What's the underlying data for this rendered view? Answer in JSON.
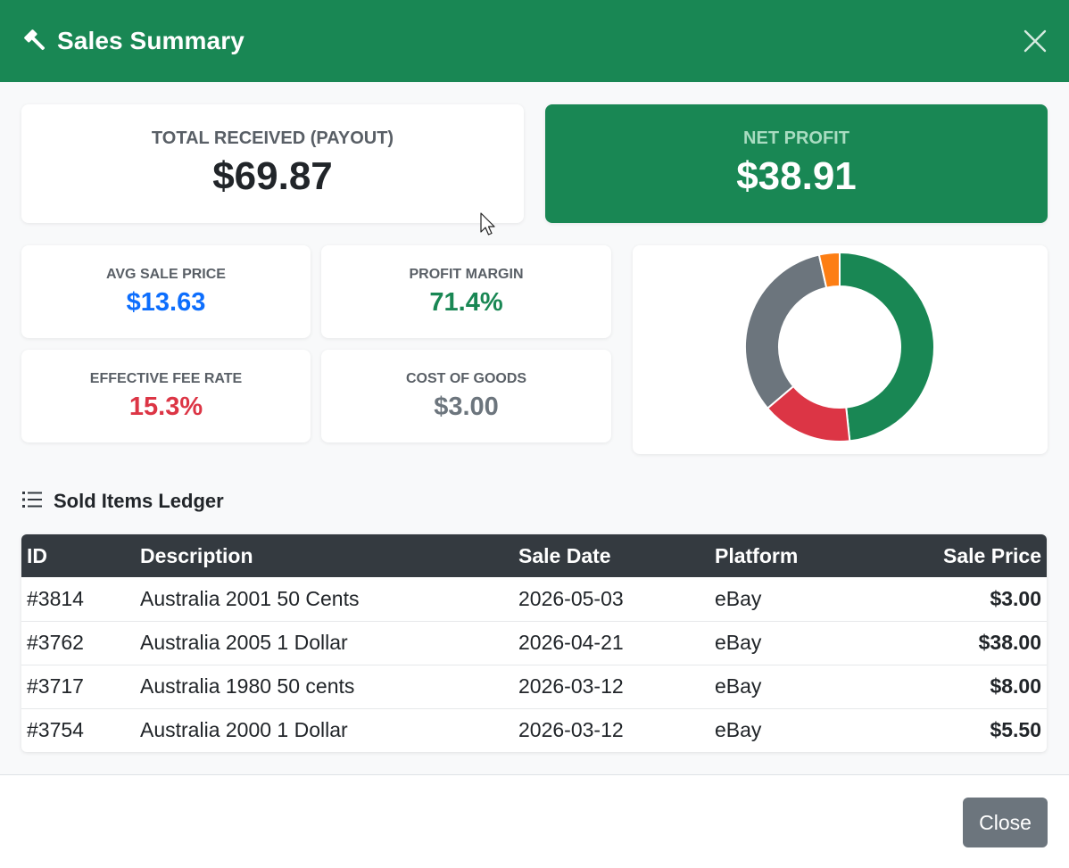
{
  "modal": {
    "title": "Sales Summary",
    "header_icon": "gavel-icon",
    "close_icon": "close-icon",
    "header_color": "#198754"
  },
  "stats": {
    "total_received": {
      "label": "TOTAL RECEIVED (PAYOUT)",
      "value": "$69.87"
    },
    "net_profit": {
      "label": "NET PROFIT",
      "value": "$38.91"
    },
    "avg_sale_price": {
      "label": "AVG SALE PRICE",
      "value": "$13.63",
      "color": "#0d6efd"
    },
    "profit_margin": {
      "label": "PROFIT MARGIN",
      "value": "71.4%",
      "color": "#198754"
    },
    "effective_fee_rate": {
      "label": "EFFECTIVE FEE RATE",
      "value": "15.3%",
      "color": "#dc3545"
    },
    "cost_of_goods": {
      "label": "COST OF GOODS",
      "value": "$3.00",
      "color": "#6c757d"
    }
  },
  "chart_data": {
    "type": "pie",
    "variant": "doughnut",
    "slices": [
      {
        "fraction": 0.483,
        "color": "#198754"
      },
      {
        "fraction": 0.155,
        "color": "#dc3545"
      },
      {
        "fraction": 0.327,
        "color": "#6c757d"
      },
      {
        "fraction": 0.035,
        "color": "#fd7e14"
      }
    ]
  },
  "ledger": {
    "title": "Sold Items Ledger",
    "icon": "list-icon",
    "columns": [
      "ID",
      "Description",
      "Sale Date",
      "Platform",
      "Sale Price"
    ],
    "rows": [
      {
        "id": "#3814",
        "description": "Australia 2001 50 Cents",
        "date": "2026-05-03",
        "platform": "eBay",
        "price": "$3.00"
      },
      {
        "id": "#3762",
        "description": "Australia 2005 1 Dollar",
        "date": "2026-04-21",
        "platform": "eBay",
        "price": "$38.00"
      },
      {
        "id": "#3717",
        "description": "Australia 1980 50 cents",
        "date": "2026-03-12",
        "platform": "eBay",
        "price": "$8.00"
      },
      {
        "id": "#3754",
        "description": "Australia 2000 1 Dollar",
        "date": "2026-03-12",
        "platform": "eBay",
        "price": "$5.50"
      }
    ]
  },
  "footer": {
    "close_label": "Close"
  }
}
